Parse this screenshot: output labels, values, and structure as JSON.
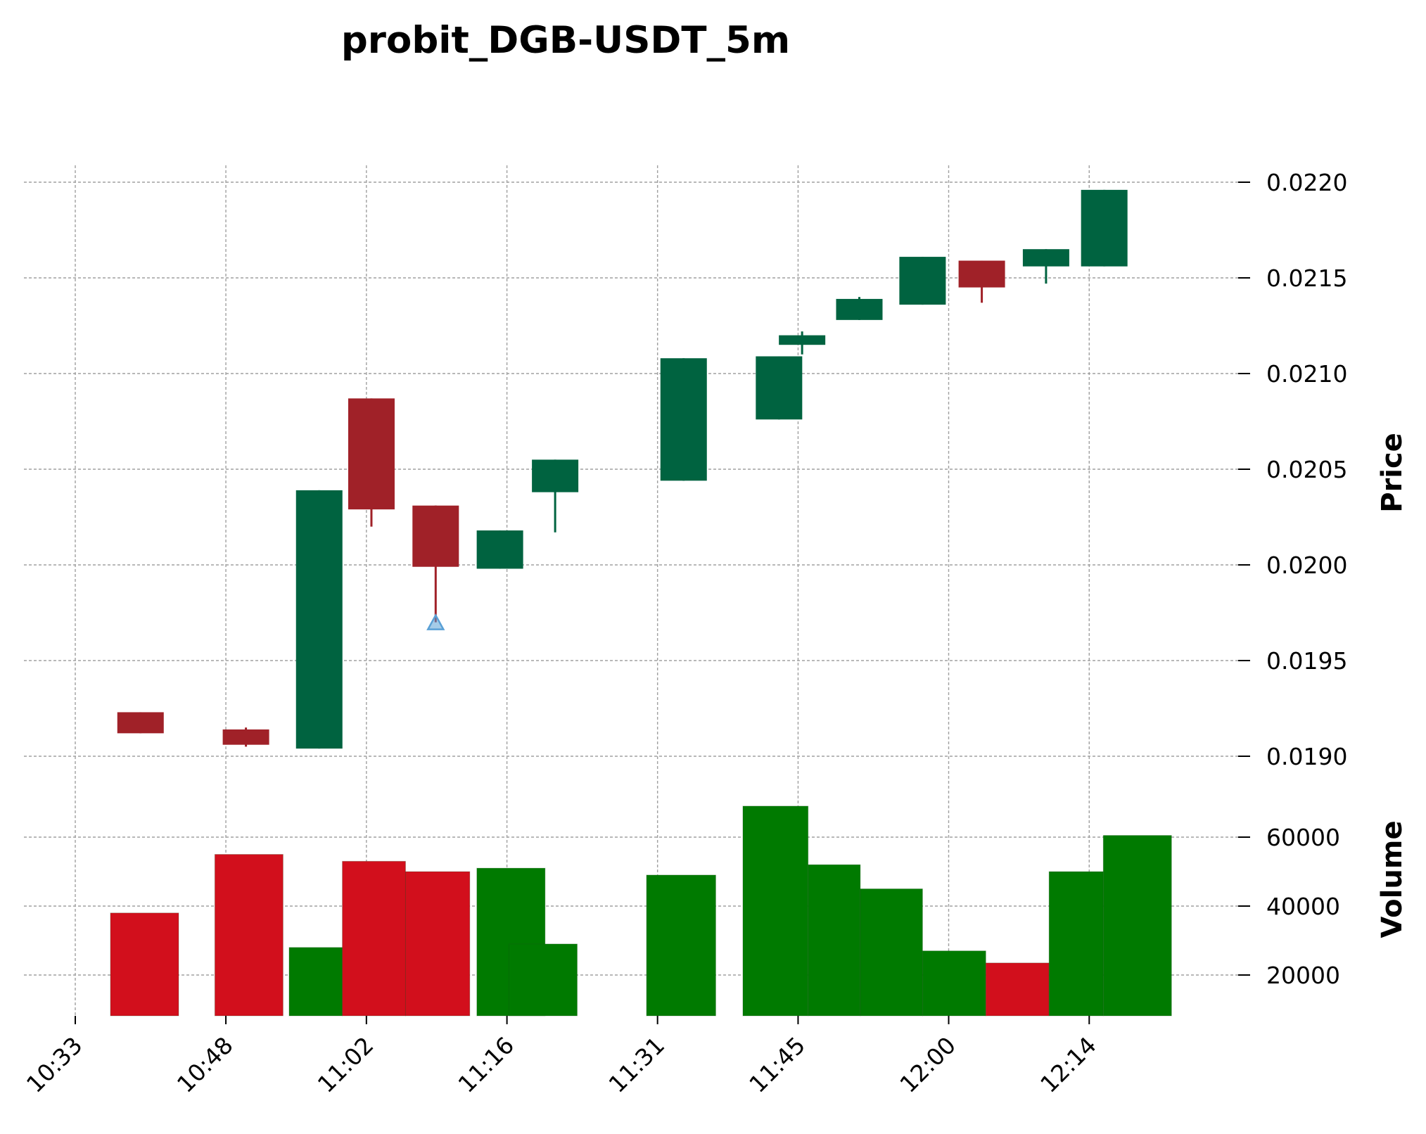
{
  "chart_data": {
    "type": "candlestick",
    "title": "probit_DGB-USDT_5m",
    "colors": {
      "up": "#006340",
      "down": "#a02128",
      "volume_up": "#007a00",
      "volume_down": "#d20f1c",
      "marker": "#5aa0d6"
    },
    "price_axis": {
      "label": "Price",
      "ticks": [
        "0.0190",
        "0.0195",
        "0.0200",
        "0.0205",
        "0.0210",
        "0.0215",
        "0.0220"
      ],
      "range": [
        0.01885,
        0.02205
      ]
    },
    "volume_axis": {
      "label": "Volume",
      "ticks": [
        "20000",
        "40000",
        "60000"
      ],
      "range": [
        9500,
        69500
      ]
    },
    "x_ticks": [
      "10:33",
      "10:48",
      "11:02",
      "11:16",
      "11:31",
      "11:45",
      "12:00",
      "12:14"
    ],
    "x_tick_minutes": [
      633,
      648,
      662,
      676,
      691,
      705,
      720,
      734
    ],
    "candles": [
      {
        "t": "10:39",
        "min": 639.5,
        "open": 0.01923,
        "high": 0.01923,
        "low": 0.01912,
        "close": 0.01912
      },
      {
        "t": "10:50",
        "min": 650.0,
        "open": 0.01914,
        "high": 0.01915,
        "low": 0.01905,
        "close": 0.01906
      },
      {
        "t": "10:57",
        "min": 657.3,
        "open": 0.01904,
        "high": 0.02039,
        "low": 0.01904,
        "close": 0.02039
      },
      {
        "t": "11:02",
        "min": 662.5,
        "open": 0.02087,
        "high": 0.02087,
        "low": 0.0202,
        "close": 0.02029
      },
      {
        "t": "11:08",
        "min": 668.9,
        "open": 0.02031,
        "high": 0.02031,
        "low": 0.0197,
        "close": 0.01999
      },
      {
        "t": "11:15",
        "min": 675.3,
        "open": 0.01998,
        "high": 0.02018,
        "low": 0.01998,
        "close": 0.02018
      },
      {
        "t": "11:18",
        "min": 680.8,
        "open": 0.02038,
        "high": 0.02055,
        "low": 0.02017,
        "close": 0.02055
      },
      {
        "t": "11:31",
        "min": 693.6,
        "open": 0.02044,
        "high": 0.02108,
        "low": 0.02044,
        "close": 0.02108
      },
      {
        "t": "11:40",
        "min": 703.1,
        "open": 0.02076,
        "high": 0.02109,
        "low": 0.02076,
        "close": 0.02109
      },
      {
        "t": "11:45",
        "min": 705.4,
        "open": 0.02115,
        "high": 0.02122,
        "low": 0.0211,
        "close": 0.0212
      },
      {
        "t": "11:51",
        "min": 711.1,
        "open": 0.02128,
        "high": 0.0214,
        "low": 0.02128,
        "close": 0.02139
      },
      {
        "t": "11:57",
        "min": 717.4,
        "open": 0.02136,
        "high": 0.02161,
        "low": 0.02136,
        "close": 0.02161
      },
      {
        "t": "12:03",
        "min": 723.3,
        "open": 0.02159,
        "high": 0.02159,
        "low": 0.02137,
        "close": 0.02145
      },
      {
        "t": "12:09",
        "min": 729.7,
        "open": 0.02156,
        "high": 0.02165,
        "low": 0.02147,
        "close": 0.02165
      },
      {
        "t": "12:13",
        "min": 735.5,
        "open": 0.02156,
        "high": 0.02196,
        "low": 0.02156,
        "close": 0.02196
      }
    ],
    "marker": {
      "type": "triangle-up",
      "t": "11:08",
      "min": 668.9,
      "price": 0.0197
    },
    "volume_bars": [
      {
        "min_start": 636.5,
        "min_end": 643.3,
        "volume": 38000,
        "direction": "down"
      },
      {
        "min_start": 646.9,
        "min_end": 653.7,
        "volume": 55000,
        "direction": "down"
      },
      {
        "min_start": 654.3,
        "min_end": 659.6,
        "volume": 28000,
        "direction": "up"
      },
      {
        "min_start": 659.6,
        "min_end": 665.9,
        "volume": 53000,
        "direction": "down"
      },
      {
        "min_start": 665.9,
        "min_end": 672.3,
        "volume": 50000,
        "direction": "down"
      },
      {
        "min_start": 673.0,
        "min_end": 679.8,
        "volume": 51000,
        "direction": "up"
      },
      {
        "min_start": 676.2,
        "min_end": 683.0,
        "volume": 29000,
        "direction": "up"
      },
      {
        "min_start": 689.9,
        "min_end": 696.8,
        "volume": 49000,
        "direction": "up"
      },
      {
        "min_start": 699.5,
        "min_end": 706.0,
        "volume": 69000,
        "direction": "up"
      },
      {
        "min_start": 706.0,
        "min_end": 711.2,
        "volume": 52000,
        "direction": "up"
      },
      {
        "min_start": 711.2,
        "min_end": 717.4,
        "volume": 45000,
        "direction": "up"
      },
      {
        "min_start": 717.4,
        "min_end": 723.7,
        "volume": 27000,
        "direction": "up"
      },
      {
        "min_start": 723.7,
        "min_end": 730.0,
        "volume": 23500,
        "direction": "down"
      },
      {
        "min_start": 730.0,
        "min_end": 735.4,
        "volume": 50000,
        "direction": "up"
      },
      {
        "min_start": 735.4,
        "min_end": 742.2,
        "volume": 60500,
        "direction": "up"
      }
    ]
  }
}
